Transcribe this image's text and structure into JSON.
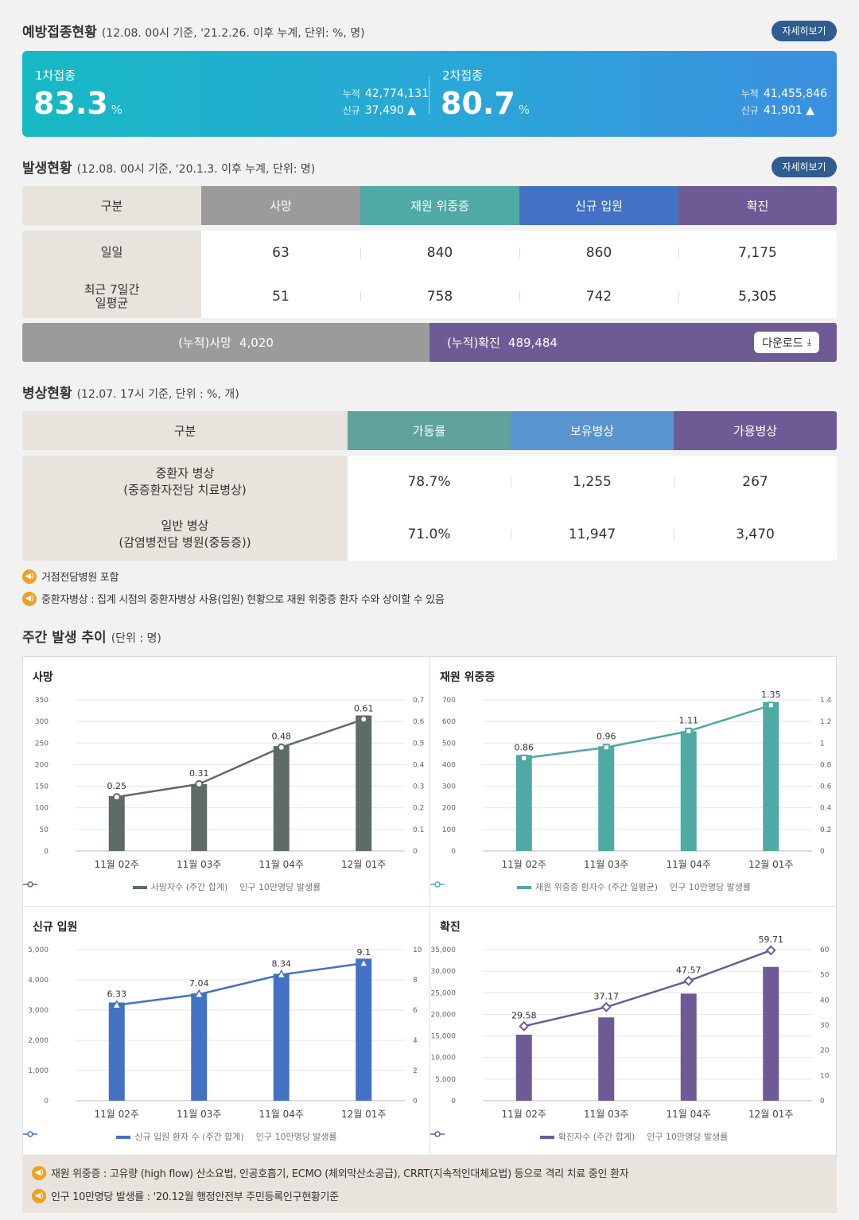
{
  "vaccination": {
    "title": "예방접종현황",
    "subtitle": "(12.08. 00시 기준, '21.2.26. 이후 누계, 단위: %, 명)",
    "more": "자세히보기",
    "first": {
      "label": "1차접종",
      "rate": "83.3",
      "pct": "%",
      "cum_label": "누적",
      "cum": "42,774,131",
      "new_label": "신규",
      "new": "37,490 ▲"
    },
    "second": {
      "label": "2차접종",
      "rate": "80.7",
      "pct": "%",
      "cum_label": "누적",
      "cum": "41,455,846",
      "new_label": "신규",
      "new": "41,901 ▲"
    }
  },
  "occurrence": {
    "title": "발생현황",
    "subtitle": "(12.08. 00시 기준, '20.1.3. 이후 누계, 단위: 명)",
    "more": "자세히보기",
    "headers": [
      "구분",
      "사망",
      "재원 위중증",
      "신규 입원",
      "확진"
    ],
    "header_colors": [
      "#e8e3dc",
      "#9b9b9b",
      "#4fa9a4",
      "#4372c4",
      "#6e5a95"
    ],
    "rows": [
      {
        "label": "일일",
        "values": [
          "63",
          "840",
          "860",
          "7,175"
        ]
      },
      {
        "label": "최근 7일간\n일평균",
        "values": [
          "51",
          "758",
          "742",
          "5,305"
        ]
      }
    ],
    "cum_death_label": "(누적)사망",
    "cum_death": "4,020",
    "cum_conf_label": "(누적)확진",
    "cum_conf": "489,484",
    "download": "다운로드"
  },
  "beds": {
    "title": "병상현황",
    "subtitle": "(12.07. 17시 기준, 단위 : %, 개)",
    "headers": [
      "구분",
      "가동률",
      "보유병상",
      "가용병상"
    ],
    "header_colors": [
      "#e8e3dc",
      "#5fa39c",
      "#5a95cf",
      "#6e5a95"
    ],
    "rows": [
      {
        "label1": "중환자 병상",
        "label2": "(중증환자전담 치료병상)",
        "values": [
          "78.7%",
          "1,255",
          "267"
        ]
      },
      {
        "label1": "일반 병상",
        "label2": "(감염병전담 병원(중등증))",
        "values": [
          "71.0%",
          "11,947",
          "3,470"
        ]
      }
    ],
    "notes": [
      "거점전담병원 포함",
      "중환자병상 : 집계 시점의 중환자병상 사용(입원) 현황으로 재원 위중증 환자 수와 상이할 수 있음"
    ]
  },
  "weekly": {
    "title": "주간 발생 추이",
    "subtitle": "(단위 : 명)",
    "footnotes": [
      "재원 위중증 : 고유량 (high flow) 산소요법, 인공호흡기, ECMO (체외막산소공급), CRRT(지속적인대체요법) 등으로 격리 치료 중인 환자",
      "인구 10만명당 발생률 : '20.12월 행정안전부 주민등록인구현황기준"
    ]
  },
  "chart_data": [
    {
      "type": "bar",
      "title": "사망",
      "categories": [
        "11월 02주",
        "11월 03주",
        "11월 04주",
        "12월 01주"
      ],
      "series": [
        {
          "name": "사망자수 (주간 합계)",
          "type": "bar",
          "axis": "left",
          "values": [
            127,
            155,
            243,
            314
          ],
          "color": "#5f6b69"
        },
        {
          "name": "인구 10만명당 발생률",
          "type": "line",
          "axis": "right",
          "values": [
            0.25,
            0.31,
            0.48,
            0.61
          ],
          "labels": [
            "0.25",
            "0.31",
            "0.48",
            "0.61"
          ],
          "color": "#5f6b69",
          "marker": "circle"
        }
      ],
      "ylim": [
        0,
        350
      ],
      "yticks": [
        "0",
        "50",
        "100",
        "150",
        "200",
        "250",
        "300",
        "350"
      ],
      "y2lim": [
        0,
        0.7
      ],
      "y2ticks": [
        "0",
        "0.1",
        "0.2",
        "0.3",
        "0.4",
        "0.5",
        "0.6",
        "0.7"
      ],
      "grid": true,
      "legend": "bottom"
    },
    {
      "type": "bar",
      "title": "재원 위중증",
      "categories": [
        "11월 02주",
        "11월 03주",
        "11월 04주",
        "12월 01주"
      ],
      "series": [
        {
          "name": "재원 위중증 환자수 (주간 일평균)",
          "type": "bar",
          "axis": "left",
          "values": [
            445,
            485,
            555,
            690
          ],
          "color": "#4fa9a4"
        },
        {
          "name": "인구 10만명당 발생률",
          "type": "line",
          "axis": "right",
          "values": [
            0.86,
            0.96,
            1.11,
            1.35
          ],
          "labels": [
            "0.86",
            "0.96",
            "1.11",
            "1.35"
          ],
          "color": "#4fa9a4",
          "marker": "square"
        }
      ],
      "ylim": [
        0,
        700
      ],
      "yticks": [
        "0",
        "100",
        "200",
        "300",
        "400",
        "500",
        "600",
        "700"
      ],
      "y2lim": [
        0,
        1.4
      ],
      "y2ticks": [
        "0",
        "0.2",
        "0.4",
        "0.6",
        "0.8",
        "1",
        "1.2",
        "1.4"
      ],
      "grid": true,
      "legend": "bottom"
    },
    {
      "type": "bar",
      "title": "신규 입원",
      "categories": [
        "11월 02주",
        "11월 03주",
        "11월 04주",
        "12월 01주"
      ],
      "series": [
        {
          "name": "신규 입원 환자 수 (주간 합계)",
          "type": "bar",
          "axis": "left",
          "values": [
            3250,
            3550,
            4200,
            4700
          ],
          "color": "#4372c4"
        },
        {
          "name": "인구 10만명당 발생률",
          "type": "line",
          "axis": "right",
          "values": [
            6.33,
            7.04,
            8.34,
            9.1
          ],
          "labels": [
            "6.33",
            "7.04",
            "8.34",
            "9.1"
          ],
          "color": "#4372c4",
          "marker": "triangle"
        }
      ],
      "ylim": [
        0,
        5000
      ],
      "yticks": [
        "0",
        "1,000",
        "2,000",
        "3,000",
        "4,000",
        "5,000"
      ],
      "y2lim": [
        0,
        10
      ],
      "y2ticks": [
        "0",
        "2",
        "4",
        "6",
        "8",
        "10"
      ],
      "grid": true,
      "legend": "bottom"
    },
    {
      "type": "bar",
      "title": "확진",
      "categories": [
        "11월 02주",
        "11월 03주",
        "11월 04주",
        "12월 01주"
      ],
      "series": [
        {
          "name": "확진자수 (주간 합계)",
          "type": "bar",
          "axis": "left",
          "values": [
            15300,
            19300,
            24800,
            31000
          ],
          "color": "#6e5a95"
        },
        {
          "name": "인구 10만명당 발생률",
          "type": "line",
          "axis": "right",
          "values": [
            29.58,
            37.17,
            47.57,
            59.71
          ],
          "labels": [
            "29.58",
            "37.17",
            "47.57",
            "59.71"
          ],
          "color": "#6e5a95",
          "marker": "diamond"
        }
      ],
      "ylim": [
        0,
        35000
      ],
      "yticks": [
        "0",
        "5,000",
        "10,000",
        "15,000",
        "20,000",
        "25,000",
        "30,000",
        "35,000"
      ],
      "y2lim": [
        0,
        60
      ],
      "y2ticks": [
        "0",
        "10",
        "20",
        "30",
        "40",
        "50",
        "60"
      ],
      "grid": true,
      "legend": "bottom"
    }
  ]
}
